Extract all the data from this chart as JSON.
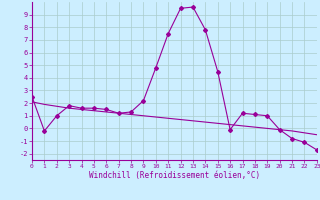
{
  "xlabel": "Windchill (Refroidissement éolien,°C)",
  "background_color": "#cceeff",
  "grid_color": "#aaddcc",
  "line_color": "#990099",
  "x_values": [
    0,
    1,
    2,
    3,
    4,
    5,
    6,
    7,
    8,
    9,
    10,
    11,
    12,
    13,
    14,
    15,
    16,
    17,
    18,
    19,
    20,
    21,
    22,
    23
  ],
  "line1_y": [
    2.5,
    -0.2,
    1.0,
    1.8,
    1.6,
    1.6,
    1.5,
    1.2,
    1.3,
    2.2,
    4.8,
    7.5,
    9.5,
    9.6,
    7.8,
    4.5,
    -0.1,
    1.2,
    1.1,
    1.0,
    -0.1,
    -0.8,
    -1.1,
    -1.7
  ],
  "regression_y": [
    2.1,
    1.9,
    1.75,
    1.6,
    1.5,
    1.4,
    1.3,
    1.2,
    1.1,
    1.0,
    0.9,
    0.8,
    0.7,
    0.6,
    0.5,
    0.4,
    0.3,
    0.2,
    0.1,
    0.0,
    -0.1,
    -0.2,
    -0.35,
    -0.5
  ],
  "xlim": [
    0,
    23
  ],
  "ylim": [
    -2.5,
    10.0
  ],
  "yticks": [
    -2,
    -1,
    0,
    1,
    2,
    3,
    4,
    5,
    6,
    7,
    8,
    9
  ],
  "xticks": [
    0,
    1,
    2,
    3,
    4,
    5,
    6,
    7,
    8,
    9,
    10,
    11,
    12,
    13,
    14,
    15,
    16,
    17,
    18,
    19,
    20,
    21,
    22,
    23
  ]
}
